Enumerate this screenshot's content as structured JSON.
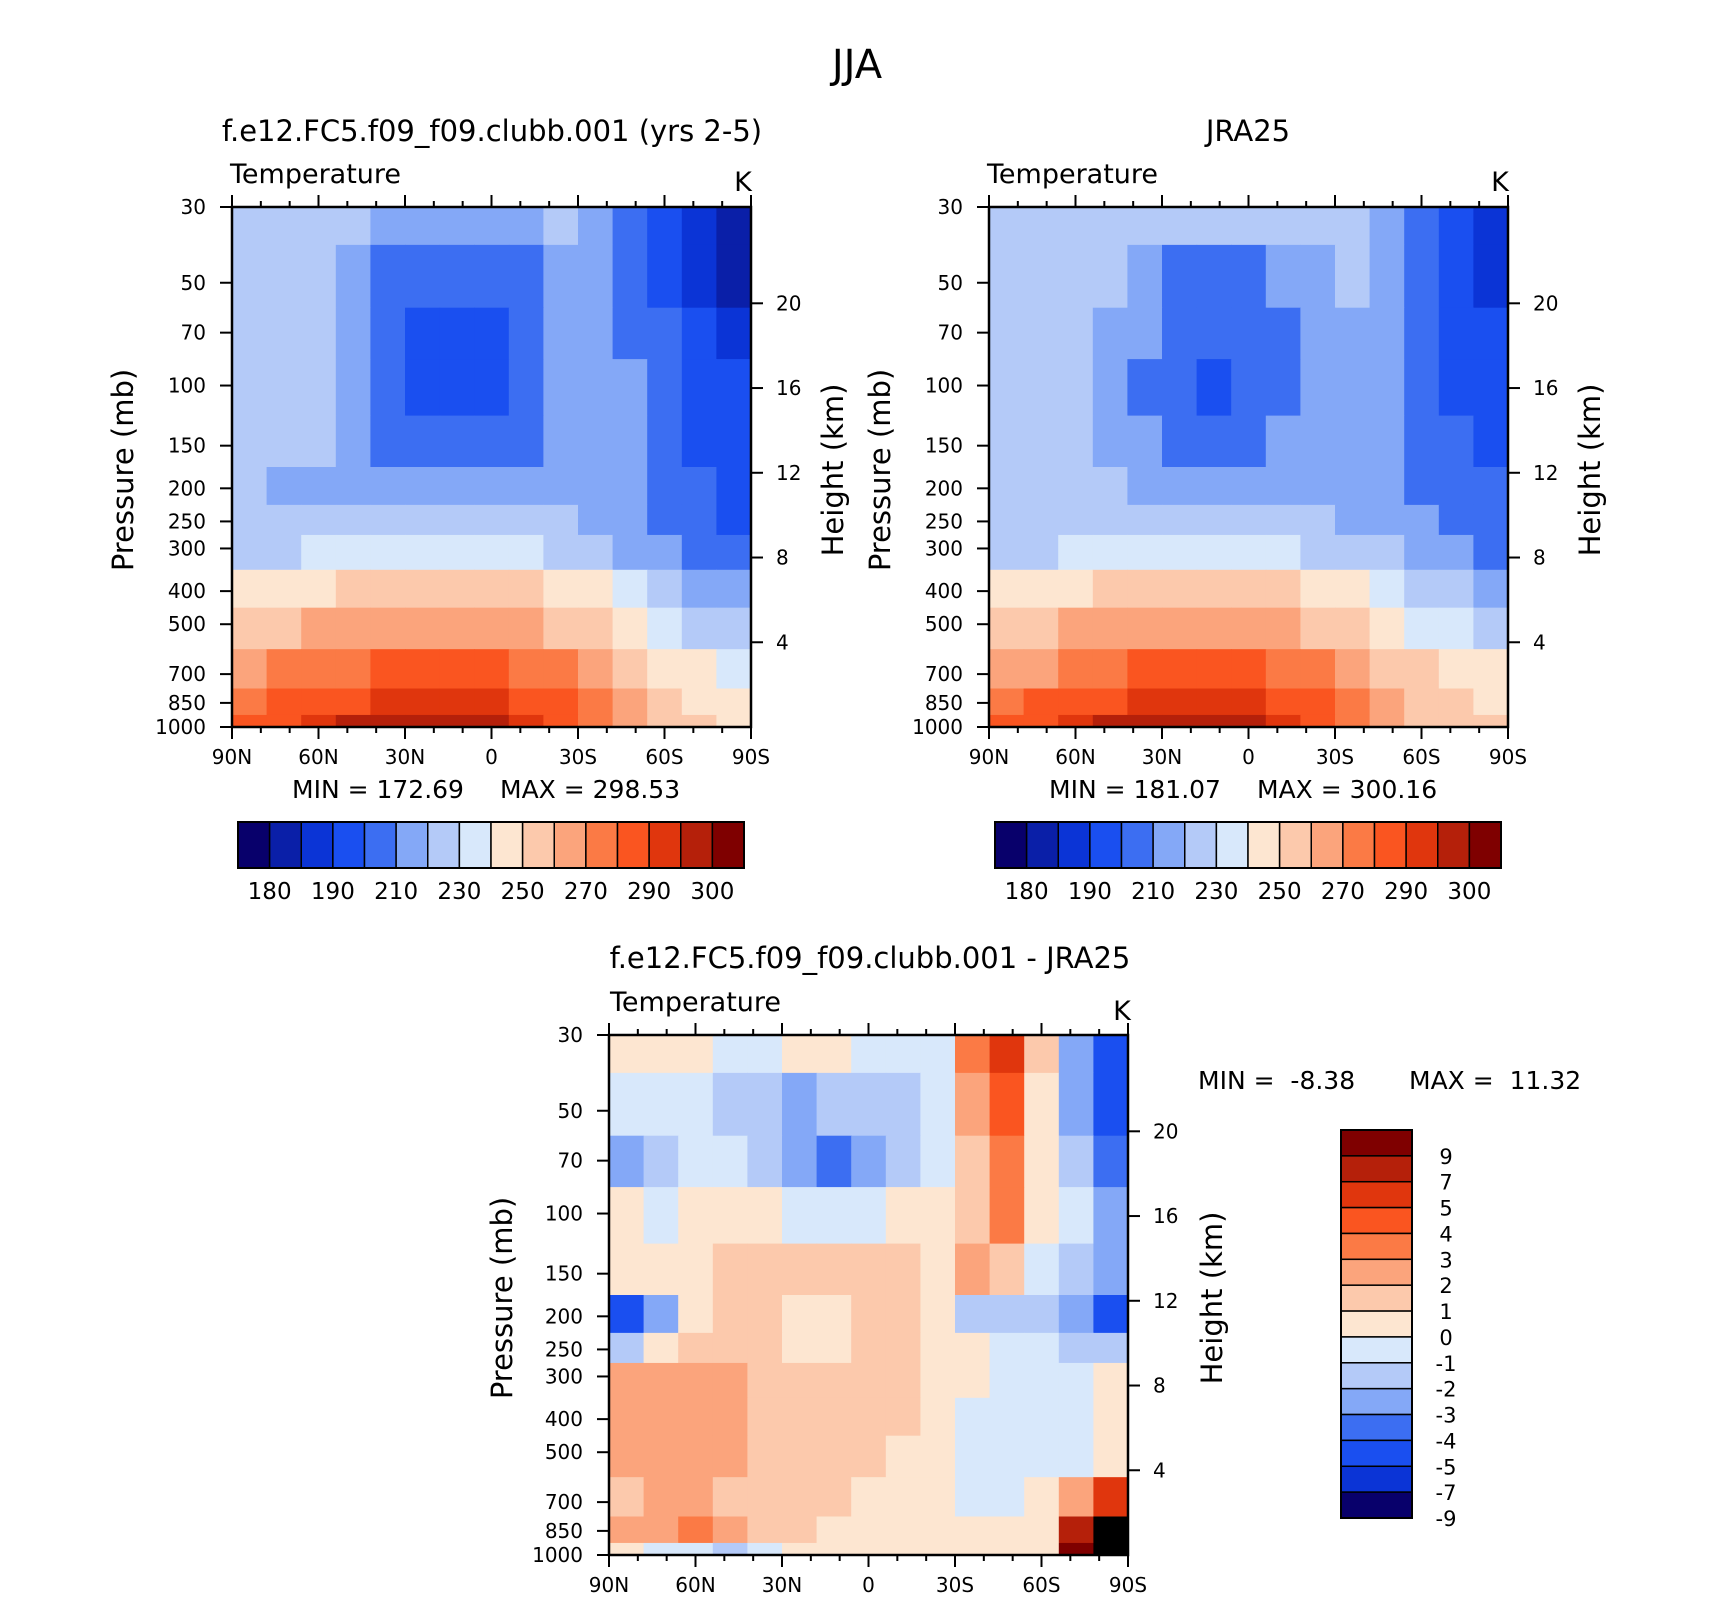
{
  "figure": {
    "title": "JJA"
  },
  "colors": {
    "abs_palette": [
      "#08006b",
      "#0a1fa8",
      "#0b34d6",
      "#1a4ff0",
      "#3c6ef2",
      "#84a8f7",
      "#b4caf8",
      "#d8e8fb",
      "#fde6d1",
      "#fcc9ac",
      "#fba47c",
      "#fb7a45",
      "#fa5520",
      "#e0360d",
      "#b5200a",
      "#7f0000"
    ],
    "diff_palette": [
      "#08006b",
      "#0b34d6",
      "#1a4ff0",
      "#3c6ef2",
      "#84a8f7",
      "#b4caf8",
      "#d8e8fb",
      "#fde6d1",
      "#fcc9ac",
      "#fba47c",
      "#fb7a45",
      "#fa5520",
      "#e0360d",
      "#b5200a",
      "#7f0000"
    ]
  },
  "chart_data": [
    {
      "id": "model",
      "type": "heatmap",
      "title": "f.e12.FC5.f09_f09.clubb.001 (yrs 2-5)",
      "variable": "Temperature",
      "units": "K",
      "ylabel": "Pressure (mb)",
      "y2label": "Height (km)",
      "x": [
        "90N",
        "60N",
        "30N",
        "0",
        "30S",
        "60S",
        "90S"
      ],
      "x_values": [
        90,
        60,
        30,
        0,
        -30,
        -60,
        -90
      ],
      "y": [
        30,
        50,
        70,
        100,
        150,
        200,
        250,
        300,
        400,
        500,
        700,
        850,
        1000
      ],
      "y2": [
        4,
        8,
        12,
        16,
        20
      ],
      "min_label": "MIN = 172.69",
      "max_label": "MAX = 298.53",
      "colorbar_labels": [
        "180",
        "190",
        "210",
        "230",
        "250",
        "270",
        "290",
        "300"
      ],
      "values": [
        [
          225,
          225,
          223,
          221,
          217,
          215,
          215,
          217,
          219,
          222,
          218,
          204,
          196,
          188,
          180
        ],
        [
          224,
          224,
          221,
          215,
          207,
          202,
          201,
          202,
          206,
          214,
          219,
          205,
          197,
          189,
          181
        ],
        [
          224,
          224,
          222,
          214,
          205,
          198,
          196,
          197,
          203,
          213,
          219,
          209,
          200,
          193,
          185
        ],
        [
          224,
          224,
          222,
          213,
          204,
          197,
          195,
          196,
          202,
          212,
          218,
          210,
          203,
          196,
          191
        ],
        [
          222,
          222,
          220,
          216,
          209,
          205,
          204,
          205,
          208,
          214,
          215,
          211,
          205,
          198,
          194
        ],
        [
          220,
          218,
          216,
          218,
          217,
          216,
          215,
          216,
          217,
          218,
          216,
          213,
          207,
          200,
          196
        ],
        [
          221,
          222,
          223,
          223,
          224,
          225,
          225,
          224,
          223,
          221,
          218,
          215,
          208,
          202,
          198
        ],
        [
          226,
          228,
          230,
          231,
          232,
          233,
          233,
          232,
          230,
          227,
          223,
          218,
          212,
          206,
          202
        ],
        [
          244,
          246,
          248,
          251,
          253,
          254,
          254,
          253,
          250,
          246,
          240,
          232,
          224,
          216,
          212
        ],
        [
          256,
          259,
          262,
          265,
          267,
          268,
          268,
          267,
          264,
          259,
          253,
          244,
          235,
          228,
          224
        ],
        [
          266,
          270,
          275,
          279,
          282,
          283,
          283,
          282,
          278,
          272,
          264,
          256,
          249,
          240,
          237
        ],
        [
          276,
          280,
          284,
          288,
          291,
          292,
          292,
          291,
          288,
          281,
          272,
          262,
          254,
          247,
          245
        ],
        [
          282,
          286,
          291,
          295,
          298,
          298,
          297,
          296,
          292,
          285,
          276,
          266,
          256,
          250,
          248
        ]
      ]
    },
    {
      "id": "obs",
      "type": "heatmap",
      "title": "JRA25",
      "variable": "Temperature",
      "units": "K",
      "ylabel": "Pressure (mb)",
      "y2label": "Height (km)",
      "x": [
        "90N",
        "60N",
        "30N",
        "0",
        "30S",
        "60S",
        "90S"
      ],
      "x_values": [
        90,
        60,
        30,
        0,
        -30,
        -60,
        -90
      ],
      "y": [
        30,
        50,
        70,
        100,
        150,
        200,
        250,
        300,
        400,
        500,
        700,
        850,
        1000
      ],
      "y2": [
        4,
        8,
        12,
        16,
        20
      ],
      "min_label": "MIN = 181.07",
      "max_label": "MAX = 300.16",
      "colorbar_labels": [
        "180",
        "190",
        "210",
        "230",
        "250",
        "270",
        "290",
        "300"
      ],
      "values": [
        [
          226,
          226,
          225,
          224,
          222,
          221,
          221,
          221,
          222,
          223,
          221,
          216,
          208,
          197,
          188
        ],
        [
          226,
          226,
          224,
          220,
          212,
          207,
          206,
          207,
          210,
          216,
          220,
          212,
          204,
          195,
          187
        ],
        [
          229,
          228,
          224,
          218,
          210,
          203,
          202,
          203,
          208,
          215,
          219,
          211,
          204,
          197,
          190
        ],
        [
          227,
          227,
          224,
          217,
          209,
          201,
          199,
          200,
          207,
          214,
          218,
          211,
          205,
          199,
          194
        ],
        [
          225,
          225,
          223,
          219,
          212,
          209,
          208,
          209,
          211,
          215,
          216,
          212,
          207,
          202,
          198
        ],
        [
          222,
          221,
          220,
          221,
          219,
          218,
          218,
          218,
          219,
          219,
          217,
          214,
          209,
          205,
          201
        ],
        [
          222,
          223,
          224,
          225,
          226,
          226,
          226,
          226,
          225,
          222,
          219,
          216,
          211,
          206,
          203
        ],
        [
          226,
          228,
          231,
          232,
          233,
          234,
          234,
          233,
          231,
          228,
          224,
          220,
          215,
          210,
          207
        ],
        [
          244,
          246,
          249,
          251,
          253,
          254,
          254,
          253,
          251,
          247,
          241,
          234,
          227,
          221,
          218
        ],
        [
          254,
          258,
          262,
          265,
          267,
          268,
          268,
          267,
          264,
          259,
          253,
          245,
          237,
          232,
          229
        ],
        [
          265,
          269,
          274,
          279,
          282,
          283,
          283,
          282,
          278,
          272,
          264,
          257,
          250,
          246,
          244
        ],
        [
          275,
          280,
          284,
          288,
          291,
          292,
          292,
          291,
          288,
          282,
          273,
          264,
          257,
          251,
          249
        ],
        [
          281,
          286,
          291,
          295,
          298,
          299,
          298,
          297,
          293,
          287,
          278,
          269,
          259,
          253,
          251
        ]
      ]
    },
    {
      "id": "diff",
      "type": "heatmap",
      "title": "f.e12.FC5.f09_f09.clubb.001 - JRA25",
      "variable": "Temperature",
      "units": "K",
      "ylabel": "Pressure (mb)",
      "y2label": "Height (km)",
      "x": [
        "90N",
        "60N",
        "30N",
        "0",
        "30S",
        "60S",
        "90S"
      ],
      "x_values": [
        90,
        60,
        30,
        0,
        -30,
        -60,
        -90
      ],
      "y": [
        30,
        50,
        70,
        100,
        150,
        200,
        250,
        300,
        400,
        500,
        700,
        850,
        1000
      ],
      "y2": [
        4,
        8,
        12,
        16,
        20
      ],
      "min_label": "MIN =  -8.38",
      "max_label": "MAX =  11.32",
      "colorbar_labels": [
        "9",
        "7",
        "5",
        "4",
        "3",
        "2",
        "1",
        "0",
        "-1",
        "-2",
        "-3",
        "-4",
        "-5",
        "-7",
        "-9"
      ],
      "values": [
        [
          -0.5,
          -0.5,
          -1,
          -1.5,
          -2,
          -1,
          -1,
          -1.5,
          -1.5,
          -1.5,
          2,
          4,
          0,
          -4,
          -6
        ],
        [
          -1.5,
          -1.5,
          -2,
          -2.5,
          -3,
          -3.5,
          -3,
          -3,
          -2.5,
          -1.5,
          1.5,
          3,
          -1,
          -4,
          -6
        ],
        [
          -4,
          -2.5,
          -2,
          -2,
          -3,
          -4,
          -4.5,
          -3.5,
          -2.5,
          -1.5,
          0.5,
          2.5,
          -0.5,
          -3,
          -5
        ],
        [
          -1,
          -1.5,
          -1,
          -1,
          -1,
          -1.5,
          -2,
          -1.5,
          -1,
          -1,
          0.5,
          2,
          -1,
          -2,
          -4
        ],
        [
          -1,
          -1,
          -0.5,
          0.5,
          0.5,
          0.5,
          0.5,
          0.5,
          0.5,
          -0.5,
          1,
          0.5,
          -1.5,
          -2.5,
          -4
        ],
        [
          -6,
          -4,
          -1,
          0.5,
          0.5,
          -0.5,
          -0.5,
          0.5,
          0.5,
          -0.5,
          -2.5,
          -3,
          -3,
          -4,
          -6
        ],
        [
          -3,
          -1,
          0.5,
          0.8,
          0.5,
          -0.5,
          -0.5,
          0.5,
          0.5,
          -0.5,
          -1,
          -1.5,
          -2,
          -2.5,
          -3
        ],
        [
          1.5,
          1.5,
          1.5,
          1.5,
          0.5,
          0.5,
          0.5,
          0.5,
          0.5,
          -0.5,
          -1,
          -1.5,
          -2,
          -1.5,
          -1
        ],
        [
          1.5,
          1.5,
          1.5,
          1,
          0.5,
          0.5,
          0.5,
          0.5,
          0.5,
          -0.5,
          -2,
          -2,
          -1.5,
          -1.5,
          -1
        ],
        [
          1.5,
          1.5,
          1.5,
          1,
          0.5,
          0.5,
          0.5,
          0.5,
          -0.5,
          -1,
          -2,
          -1.5,
          -1.5,
          -1.5,
          -1
        ],
        [
          0.5,
          1,
          1,
          0.5,
          0.5,
          0.5,
          0.5,
          -0.5,
          -0.5,
          -1,
          -1.5,
          -1.5,
          -1,
          1,
          4
        ],
        [
          1.5,
          1.5,
          2,
          1,
          0.5,
          0.5,
          -0.5,
          -0.5,
          -0.5,
          -1,
          -1,
          -1,
          -0.5,
          5,
          9
        ],
        [
          -1,
          -2,
          -2,
          -2.5,
          -1.5,
          -0.5,
          -0.5,
          -0.5,
          -0.5,
          -0.5,
          -0.5,
          -0.5,
          -0.5,
          7,
          11
        ]
      ]
    }
  ]
}
